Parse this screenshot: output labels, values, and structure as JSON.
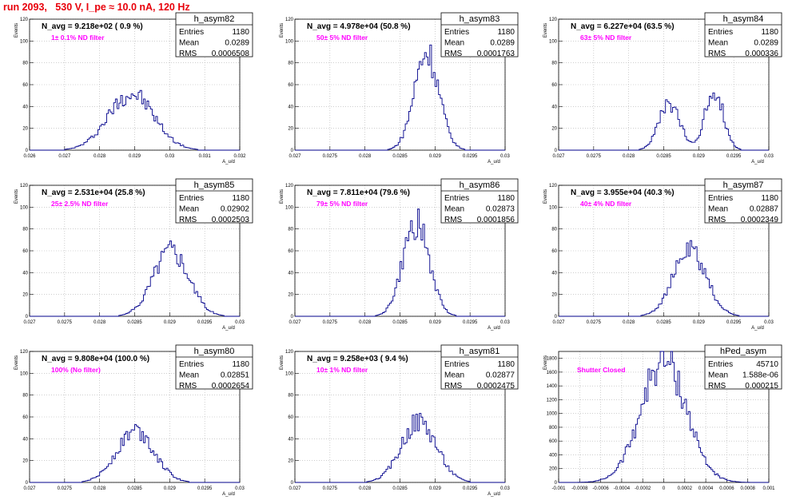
{
  "header": {
    "run_title": "run 2093,   530 V, I_pe ≈ 10.0 nA, 120 Hz"
  },
  "colors": {
    "title": "#e8000b",
    "note": "#ff00ff",
    "hist": "#00008b",
    "grid": "#b0b0b0"
  },
  "chart_data": [
    {
      "type": "histogram",
      "hist_name": "h_asym82",
      "navg_label": "N_avg = 9.218e+02 ( 0.9 %)",
      "note": "1± 0.1% ND filter",
      "stats": [
        [
          "Entries",
          "1180"
        ],
        [
          "Mean",
          "0.0289"
        ],
        [
          "RMS",
          "0.0006508"
        ]
      ],
      "ylabel": "Events",
      "xlabel": "A_u/d",
      "xlim": [
        0.026,
        0.032
      ],
      "ylim": [
        0,
        120
      ],
      "xticks": [
        "0.026",
        "0.027",
        "0.028",
        "0.029",
        "0.03",
        "0.031",
        "0.032"
      ],
      "yticks": [
        "0",
        "20",
        "40",
        "60",
        "80",
        "100",
        "120"
      ],
      "peaks": [
        {
          "mu": 0.0289,
          "sigma": 0.00065,
          "amp": 52
        }
      ]
    },
    {
      "type": "histogram",
      "hist_name": "h_asym83",
      "navg_label": "N_avg = 4.978e+04 (50.8 %)",
      "note": "50± 5% ND filter",
      "stats": [
        [
          "Entries",
          "1180"
        ],
        [
          "Mean",
          "0.0289"
        ],
        [
          "RMS",
          "0.0001763"
        ]
      ],
      "ylabel": "Events",
      "xlabel": "A_u/d",
      "xlim": [
        0.027,
        0.03
      ],
      "ylim": [
        0,
        120
      ],
      "xticks": [
        "0.027",
        "0.0275",
        "0.028",
        "0.0285",
        "0.029",
        "0.0295",
        "0.03"
      ],
      "yticks": [
        "0",
        "20",
        "40",
        "60",
        "80",
        "100",
        "120"
      ],
      "peaks": [
        {
          "mu": 0.02888,
          "sigma": 0.000176,
          "amp": 90
        }
      ]
    },
    {
      "type": "histogram",
      "hist_name": "h_asym84",
      "navg_label": "N_avg = 6.227e+04 (63.5 %)",
      "note": "63± 5% ND filter",
      "stats": [
        [
          "Entries",
          "1180"
        ],
        [
          "Mean",
          "0.0289"
        ],
        [
          "RMS",
          "0.000336"
        ]
      ],
      "ylabel": "Events",
      "xlabel": "A_u/d",
      "xlim": [
        0.027,
        0.03
      ],
      "ylim": [
        0,
        120
      ],
      "xticks": [
        "0.027",
        "0.0275",
        "0.028",
        "0.0285",
        "0.029",
        "0.0295",
        "0.03"
      ],
      "yticks": [
        "0",
        "20",
        "40",
        "60",
        "80",
        "100",
        "120"
      ],
      "peaks": [
        {
          "mu": 0.02858,
          "sigma": 0.00015,
          "amp": 42
        },
        {
          "mu": 0.02922,
          "sigma": 0.00013,
          "amp": 55
        }
      ]
    },
    {
      "type": "histogram",
      "hist_name": "h_asym85",
      "navg_label": "N_avg = 2.531e+04 (25.8 %)",
      "note": "25± 2.5% ND filter",
      "stats": [
        [
          "Entries",
          "1180"
        ],
        [
          "Mean",
          "0.02902"
        ],
        [
          "RMS",
          "0.0002503"
        ]
      ],
      "ylabel": "Events",
      "xlabel": "A_u/d",
      "xlim": [
        0.027,
        0.03
      ],
      "ylim": [
        0,
        120
      ],
      "xticks": [
        "0.027",
        "0.0275",
        "0.028",
        "0.0285",
        "0.029",
        "0.0295",
        "0.03"
      ],
      "yticks": [
        "0",
        "20",
        "40",
        "60",
        "80",
        "100",
        "120"
      ],
      "peaks": [
        {
          "mu": 0.02902,
          "sigma": 0.00025,
          "amp": 62
        }
      ]
    },
    {
      "type": "histogram",
      "hist_name": "h_asym86",
      "navg_label": "N_avg = 7.811e+04 (79.6 %)",
      "note": "79± 5% ND filter",
      "stats": [
        [
          "Entries",
          "1180"
        ],
        [
          "Mean",
          "0.02873"
        ],
        [
          "RMS",
          "0.0001856"
        ]
      ],
      "ylabel": "Events",
      "xlabel": "A_u/d",
      "xlim": [
        0.027,
        0.03
      ],
      "ylim": [
        0,
        120
      ],
      "xticks": [
        "0.027",
        "0.0275",
        "0.028",
        "0.0285",
        "0.029",
        "0.0295",
        "0.03"
      ],
      "yticks": [
        "0",
        "20",
        "40",
        "60",
        "80",
        "100",
        "120"
      ],
      "peaks": [
        {
          "mu": 0.02873,
          "sigma": 0.000186,
          "amp": 85
        }
      ]
    },
    {
      "type": "histogram",
      "hist_name": "h_asym87",
      "navg_label": "N_avg = 3.955e+04 (40.3 %)",
      "note": "40± 4% ND filter",
      "stats": [
        [
          "Entries",
          "1180"
        ],
        [
          "Mean",
          "0.02887"
        ],
        [
          "RMS",
          "0.0002349"
        ]
      ],
      "ylabel": "Events",
      "xlabel": "A_u/d",
      "xlim": [
        0.027,
        0.03
      ],
      "ylim": [
        0,
        120
      ],
      "xticks": [
        "0.027",
        "0.0275",
        "0.028",
        "0.0285",
        "0.029",
        "0.0295",
        "0.03"
      ],
      "yticks": [
        "0",
        "20",
        "40",
        "60",
        "80",
        "100",
        "120"
      ],
      "peaks": [
        {
          "mu": 0.02887,
          "sigma": 0.000235,
          "amp": 60
        }
      ]
    },
    {
      "type": "histogram",
      "hist_name": "h_asym80",
      "navg_label": "N_avg = 9.808e+04 (100.0 %)",
      "note": "100% (No filter)",
      "stats": [
        [
          "Entries",
          "1180"
        ],
        [
          "Mean",
          "0.02851"
        ],
        [
          "RMS",
          "0.0002654"
        ]
      ],
      "ylabel": "Events",
      "xlabel": "A_u/d",
      "xlim": [
        0.027,
        0.03
      ],
      "ylim": [
        0,
        120
      ],
      "xticks": [
        "0.027",
        "0.0275",
        "0.028",
        "0.0285",
        "0.029",
        "0.0295",
        "0.03"
      ],
      "yticks": [
        "0",
        "20",
        "40",
        "60",
        "80",
        "100",
        "120"
      ],
      "peaks": [
        {
          "mu": 0.02851,
          "sigma": 0.000265,
          "amp": 48
        }
      ]
    },
    {
      "type": "histogram",
      "hist_name": "h_asym81",
      "navg_label": "N_avg = 9.258e+03 ( 9.4 %)",
      "note": "10± 1% ND filter",
      "stats": [
        [
          "Entries",
          "1180"
        ],
        [
          "Mean",
          "0.02877"
        ],
        [
          "RMS",
          "0.0002475"
        ]
      ],
      "ylabel": "Events",
      "xlabel": "A_u/d",
      "xlim": [
        0.027,
        0.03
      ],
      "ylim": [
        0,
        120
      ],
      "xticks": [
        "0.027",
        "0.0275",
        "0.028",
        "0.0285",
        "0.029",
        "0.0295",
        "0.03"
      ],
      "yticks": [
        "0",
        "20",
        "40",
        "60",
        "80",
        "100",
        "120"
      ],
      "peaks": [
        {
          "mu": 0.02877,
          "sigma": 0.00025,
          "amp": 56
        }
      ]
    },
    {
      "type": "histogram",
      "hist_name": "hPed_asym",
      "navg_label": "",
      "note": "Shutter Closed",
      "stats": [
        [
          "Entries",
          "45710"
        ],
        [
          "Mean",
          "1.588e-06"
        ],
        [
          "RMS",
          "0.000215"
        ]
      ],
      "ylabel": "Events",
      "xlabel": "",
      "xlim": [
        -0.001,
        0.001
      ],
      "ylim": [
        0,
        1900
      ],
      "xticks": [
        "-0.001",
        "-0.0008",
        "-0.0006",
        "-0.0004",
        "-0.0002",
        "0",
        "0.0002",
        "0.0004",
        "0.0006",
        "0.0008",
        "0.001"
      ],
      "yticks": [
        "0",
        "200",
        "400",
        "600",
        "800",
        "1000",
        "1200",
        "1400",
        "1600",
        "1800"
      ],
      "peaks": [
        {
          "mu": 0.0,
          "sigma": 0.000215,
          "amp": 1780
        }
      ]
    }
  ]
}
